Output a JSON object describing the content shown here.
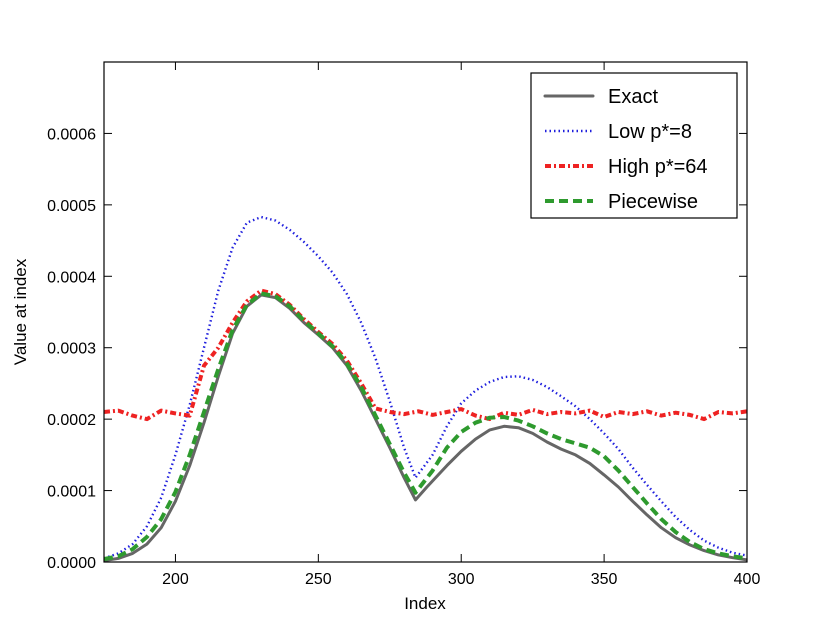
{
  "chart_data": {
    "type": "line",
    "title": "",
    "xlabel": "Index",
    "ylabel": "Value at index",
    "xlim": [
      175,
      400
    ],
    "ylim": [
      0,
      0.0007
    ],
    "xticks": [
      200,
      250,
      300,
      350,
      400
    ],
    "xtick_labels": [
      "200",
      "250",
      "300",
      "350",
      "400"
    ],
    "yticks": [
      0,
      0.0001,
      0.0002,
      0.0003,
      0.0004,
      0.0005,
      0.0006
    ],
    "ytick_labels": [
      "0.0000",
      "0.0001",
      "0.0002",
      "0.0003",
      "0.0004",
      "0.0005",
      "0.0006"
    ],
    "grid": false,
    "legend_position": "top-right",
    "series": [
      {
        "name": "Exact",
        "color": "#666666",
        "style": "solid",
        "x": [
          175,
          180,
          185,
          190,
          195,
          200,
          205,
          210,
          215,
          220,
          225,
          230,
          235,
          240,
          245,
          250,
          255,
          260,
          265,
          270,
          275,
          280,
          284,
          288,
          295,
          300,
          305,
          310,
          315,
          320,
          325,
          330,
          335,
          340,
          345,
          350,
          355,
          360,
          365,
          370,
          375,
          380,
          385,
          390,
          395,
          400
        ],
        "y": [
          2e-06,
          5e-06,
          1.2e-05,
          2.5e-05,
          4.8e-05,
          8.5e-05,
          0.000135,
          0.000195,
          0.00026,
          0.00032,
          0.000358,
          0.000374,
          0.00037,
          0.000355,
          0.000335,
          0.000318,
          0.0003,
          0.000275,
          0.00024,
          0.0002,
          0.00016,
          0.000118,
          8.7e-05,
          0.000105,
          0.000135,
          0.000155,
          0.000172,
          0.000185,
          0.00019,
          0.000188,
          0.00018,
          0.000168,
          0.000158,
          0.00015,
          0.000138,
          0.000122,
          0.000105,
          8.5e-05,
          6.6e-05,
          4.8e-05,
          3.4e-05,
          2.4e-05,
          1.6e-05,
          1e-05,
          6e-06,
          3e-06
        ]
      },
      {
        "name": "Low p*=8",
        "color": "#1f1fdd",
        "style": "dotted",
        "x": [
          175,
          180,
          185,
          190,
          195,
          200,
          205,
          210,
          215,
          220,
          225,
          230,
          235,
          240,
          245,
          250,
          255,
          260,
          265,
          270,
          275,
          280,
          284,
          290,
          295,
          300,
          305,
          310,
          315,
          320,
          325,
          330,
          335,
          340,
          345,
          350,
          355,
          360,
          365,
          370,
          375,
          380,
          385,
          390,
          395,
          400
        ],
        "y": [
          5e-06,
          1.2e-05,
          2.5e-05,
          5e-05,
          9e-05,
          0.00015,
          0.00022,
          0.0003,
          0.00038,
          0.00044,
          0.000475,
          0.000483,
          0.000478,
          0.000465,
          0.000448,
          0.000428,
          0.000405,
          0.000375,
          0.000335,
          0.000285,
          0.000225,
          0.00016,
          0.000118,
          0.00015,
          0.00019,
          0.000222,
          0.00024,
          0.000252,
          0.000259,
          0.00026,
          0.000255,
          0.000245,
          0.000232,
          0.000218,
          0.0002,
          0.00018,
          0.000158,
          0.000132,
          0.000108,
          8.5e-05,
          6.3e-05,
          4.5e-05,
          3e-05,
          2e-05,
          1.3e-05,
          9e-06
        ]
      },
      {
        "name": "High p*=64",
        "color": "#ee2222",
        "style": "dashdot",
        "x": [
          175,
          180,
          185,
          190,
          195,
          200,
          205,
          210,
          215,
          220,
          225,
          230,
          235,
          240,
          245,
          250,
          255,
          260,
          265,
          270,
          275,
          280,
          285,
          290,
          295,
          300,
          305,
          310,
          315,
          320,
          325,
          330,
          335,
          340,
          345,
          350,
          355,
          360,
          365,
          370,
          375,
          380,
          385,
          390,
          395,
          400
        ],
        "y": [
          0.00021,
          0.000212,
          0.000205,
          0.0002,
          0.000212,
          0.000208,
          0.000205,
          0.000275,
          0.0003,
          0.000335,
          0.000365,
          0.00038,
          0.000375,
          0.00036,
          0.00034,
          0.000322,
          0.000305,
          0.000282,
          0.00025,
          0.000215,
          0.00021,
          0.000207,
          0.000211,
          0.000206,
          0.00021,
          0.000214,
          0.000205,
          0.0002,
          0.000209,
          0.000206,
          0.000213,
          0.000207,
          0.00021,
          0.000208,
          0.000212,
          0.000203,
          0.00021,
          0.000207,
          0.000211,
          0.000205,
          0.000209,
          0.000206,
          0.0002,
          0.00021,
          0.000208,
          0.000211
        ]
      },
      {
        "name": "Piecewise",
        "color": "#2e9a2e",
        "style": "dashed",
        "x": [
          175,
          180,
          185,
          190,
          195,
          200,
          205,
          210,
          215,
          220,
          225,
          230,
          235,
          240,
          245,
          250,
          255,
          260,
          265,
          270,
          275,
          280,
          284,
          290,
          295,
          300,
          305,
          310,
          315,
          320,
          325,
          330,
          335,
          340,
          345,
          350,
          355,
          360,
          365,
          370,
          375,
          380,
          385,
          390,
          395,
          400
        ],
        "y": [
          4e-06,
          8e-06,
          1.8e-05,
          3.5e-05,
          6e-05,
          9.8e-05,
          0.00015,
          0.00021,
          0.00027,
          0.000325,
          0.00036,
          0.000376,
          0.000372,
          0.000358,
          0.000338,
          0.00032,
          0.000302,
          0.000278,
          0.000245,
          0.000205,
          0.000165,
          0.000125,
          9.7e-05,
          0.000128,
          0.00016,
          0.000182,
          0.000195,
          0.000202,
          0.000203,
          0.000198,
          0.00019,
          0.00018,
          0.000172,
          0.000166,
          0.00016,
          0.000148,
          0.000128,
          0.000105,
          8.2e-05,
          6e-05,
          4.2e-05,
          2.8e-05,
          1.8e-05,
          1.2e-05,
          8e-06,
          5e-06
        ]
      }
    ]
  }
}
